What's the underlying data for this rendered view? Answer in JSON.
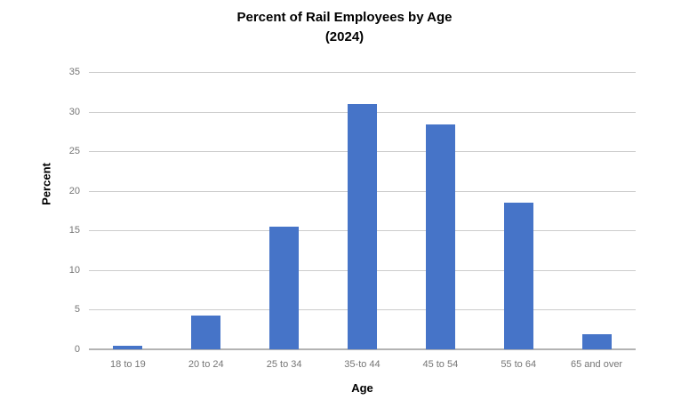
{
  "chart_data": {
    "type": "bar",
    "title": "Percent of Rail Employees by Age",
    "subtitle": "(2024)",
    "categories": [
      "18 to 19",
      "20 to 24",
      "25 to 34",
      "35-to 44",
      "45 to 54",
      "55 to 64",
      "65 and over"
    ],
    "values": [
      0.4,
      4.3,
      15.5,
      31.0,
      28.4,
      18.5,
      1.9
    ],
    "xlabel": "Age",
    "ylabel": "Percent",
    "ylim": [
      0,
      35
    ],
    "yticks": [
      0,
      5,
      10,
      15,
      20,
      25,
      30,
      35
    ],
    "grid": true,
    "legend_position": "none",
    "colors": {
      "bar": "#4674C8",
      "gridline": "#CCCCCC",
      "axis_line": "#B3B3B3",
      "tick_label": "#757575",
      "title_text": "#000000"
    }
  }
}
